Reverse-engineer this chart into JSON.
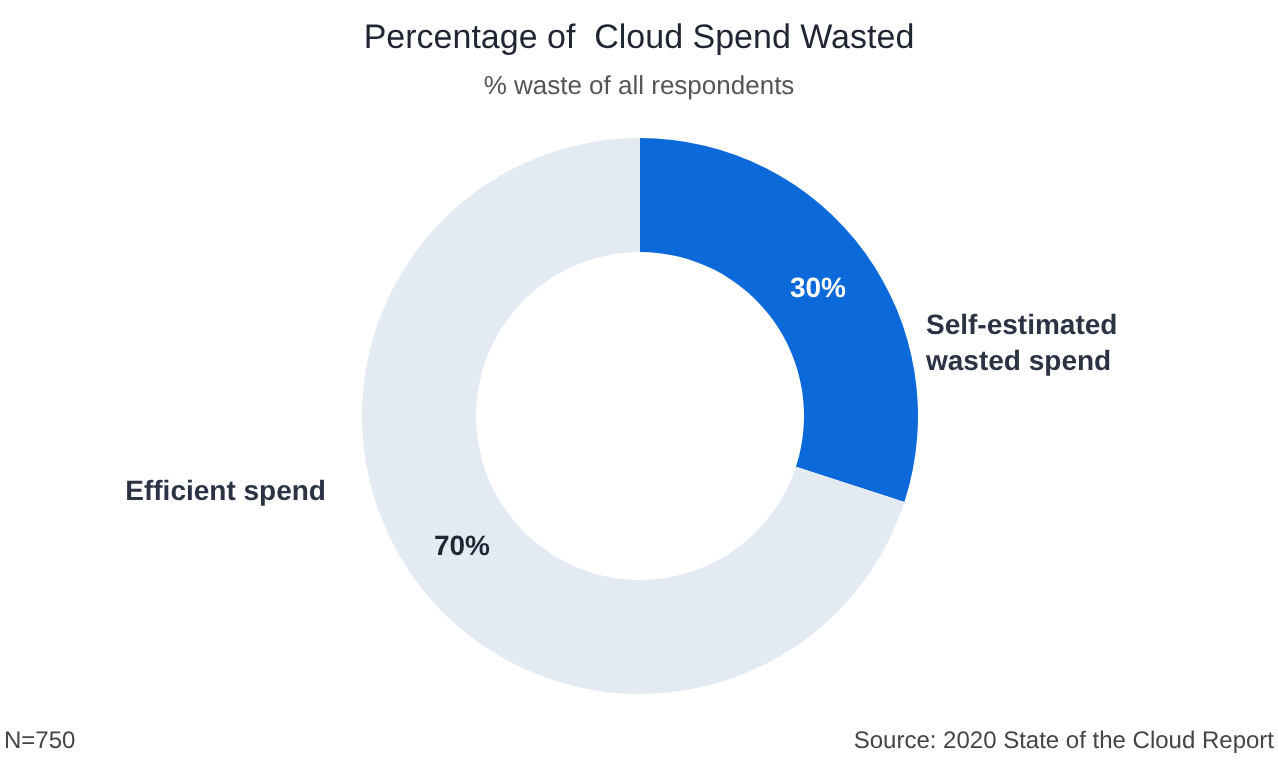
{
  "chart_data": {
    "type": "donut",
    "title": "Percentage of  Cloud Spend Wasted",
    "subtitle": "% waste of all respondents",
    "categories": [
      "Self-estimated wasted spend",
      "Efficient spend"
    ],
    "values": [
      30,
      70
    ],
    "value_labels": [
      "30%",
      "70%"
    ],
    "colors": [
      "#0b69d9",
      "#e4eaf2"
    ],
    "annotations": [
      "N=750",
      "Source: 2020 State of the Cloud Report"
    ]
  }
}
